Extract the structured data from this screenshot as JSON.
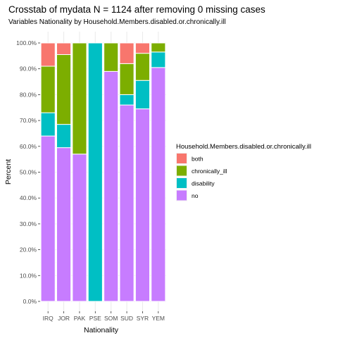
{
  "chart_data": {
    "type": "bar",
    "stacked": true,
    "title": "Crosstab of mydata N = 1124 after removing 0 missing cases",
    "subtitle": "Variables Nationality by Household.Members.disabled.or.chronically.ill",
    "xlabel": "Nationality",
    "ylabel": "Percent",
    "categories": [
      "IRQ",
      "JOR",
      "PAK",
      "PSE",
      "SOM",
      "SUD",
      "SYR",
      "YEM"
    ],
    "ylim": [
      0,
      100
    ],
    "y_ticks": [
      "0.0%",
      "10.0%",
      "20.0%",
      "30.0%",
      "40.0%",
      "50.0%",
      "60.0%",
      "70.0%",
      "80.0%",
      "90.0%",
      "100.0%"
    ],
    "grid": true,
    "legend_position": "right",
    "legend_title": "Household.Members.disabled.or.chronically.ill",
    "series": [
      {
        "name": "no",
        "color": "#C77CFF",
        "values": [
          64,
          59.5,
          57,
          0,
          89,
          76,
          74.5,
          90.5
        ]
      },
      {
        "name": "disability",
        "color": "#00BFC4",
        "values": [
          9,
          9,
          0,
          100,
          0,
          4,
          11,
          6
        ]
      },
      {
        "name": "chronically_ill",
        "color": "#7CAE00",
        "values": [
          18,
          27,
          43,
          0,
          11,
          12,
          10.5,
          3.5
        ]
      },
      {
        "name": "both",
        "color": "#F8766D",
        "values": [
          9,
          4.5,
          0,
          0,
          0,
          8,
          4,
          0
        ]
      }
    ],
    "legend_order": [
      "both",
      "chronically_ill",
      "disability",
      "no"
    ]
  },
  "colors": {
    "panel_background": "#ffffff",
    "grid_major": "#ebebeb",
    "grid_minor": "#f5f5f5",
    "bar_outline": "#ffffff"
  }
}
